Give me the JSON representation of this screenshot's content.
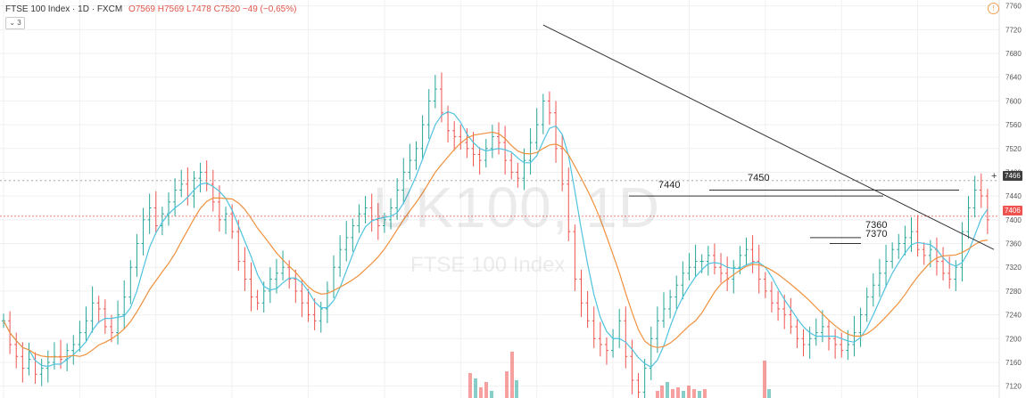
{
  "header": {
    "symbol_line": "FTSE 100 Index · 1D · FXCM",
    "ohlc": "O7569  H7569  L7478  C7520  −49 (−0,65%)",
    "collapse_label": "3"
  },
  "watermark": {
    "main": "UK100, 1D",
    "sub": "FTSE 100 Index"
  },
  "price_tags": {
    "crosshair": "7466",
    "last": "7406"
  },
  "icons": {
    "alert": "alert-icon",
    "crosshair": "crosshair-icon"
  },
  "colors": {
    "up": "#26a69a",
    "down": "#ef5350",
    "ma_fast": "#4fc3e0",
    "ma_slow": "#f0913e",
    "trendline": "#333333"
  },
  "levels": [
    {
      "label": "7440",
      "value": 7440
    },
    {
      "label": "7450",
      "value": 7450
    },
    {
      "label": "7360",
      "value": 7360
    },
    {
      "label": "7370",
      "value": 7370
    }
  ],
  "chart_data": {
    "type": "ohlc",
    "symbol": "UK100",
    "interval": "1D",
    "y_axis": {
      "ticks": [
        7120,
        7160,
        7200,
        7240,
        7280,
        7320,
        7360,
        7400,
        7440,
        7480,
        7520,
        7560,
        7600,
        7640,
        7680,
        7720,
        7760
      ],
      "ylim": [
        7100,
        7770
      ]
    },
    "grid": true,
    "trendline": {
      "from_bar": 85,
      "from_price": 7728,
      "to_bar": 156,
      "to_price": 7350
    },
    "horizontal_levels": [
      7440,
      7450,
      7360,
      7370
    ],
    "current_price_line": 7406,
    "crosshair_price": 7466,
    "closes": [
      7230,
      7190,
      7170,
      7150,
      7165,
      7140,
      7150,
      7160,
      7170,
      7165,
      7180,
      7190,
      7210,
      7230,
      7260,
      7250,
      7220,
      7210,
      7240,
      7270,
      7320,
      7360,
      7400,
      7420,
      7390,
      7410,
      7430,
      7450,
      7460,
      7440,
      7470,
      7480,
      7460,
      7430,
      7400,
      7410,
      7380,
      7330,
      7300,
      7270,
      7260,
      7280,
      7300,
      7310,
      7320,
      7300,
      7280,
      7260,
      7240,
      7230,
      7250,
      7280,
      7320,
      7350,
      7370,
      7390,
      7410,
      7420,
      7400,
      7390,
      7400,
      7420,
      7450,
      7480,
      7500,
      7520,
      7560,
      7600,
      7620,
      7580,
      7550,
      7540,
      7530,
      7520,
      7510,
      7500,
      7520,
      7540,
      7530,
      7500,
      7480,
      7470,
      7500,
      7530,
      7560,
      7600,
      7580,
      7520,
      7460,
      7380,
      7300,
      7260,
      7230,
      7200,
      7190,
      7180,
      7200,
      7230,
      7170,
      7130,
      7110,
      7150,
      7200,
      7230,
      7250,
      7270,
      7290,
      7310,
      7320,
      7330,
      7330,
      7340,
      7320,
      7310,
      7300,
      7320,
      7340,
      7350,
      7330,
      7300,
      7280,
      7260,
      7250,
      7240,
      7220,
      7200,
      7190,
      7200,
      7210,
      7220,
      7200,
      7190,
      7180,
      7190,
      7210,
      7240,
      7270,
      7290,
      7310,
      7330,
      7350,
      7360,
      7370,
      7380,
      7350,
      7340,
      7350,
      7330,
      7310,
      7300,
      7320,
      7380,
      7420,
      7450,
      7440,
      7400
    ],
    "volumes": [
      0,
      0,
      0,
      0,
      0,
      0,
      0,
      0,
      0,
      0,
      0,
      0,
      0,
      0,
      0,
      0,
      0,
      0,
      0,
      0,
      0,
      0,
      0,
      0,
      0,
      0,
      0,
      0,
      0,
      0,
      0,
      0,
      0,
      0,
      0,
      0,
      0,
      0,
      0,
      0,
      0,
      0,
      0,
      0,
      0,
      0,
      0,
      0,
      0,
      0,
      0,
      0,
      0,
      0,
      0,
      0,
      0,
      0,
      0,
      0,
      0,
      0,
      0,
      0,
      0,
      0,
      0,
      0,
      0,
      0,
      0,
      0,
      0,
      0,
      0,
      0,
      0,
      0,
      0,
      0,
      0,
      0,
      0,
      0,
      0,
      0,
      0,
      0,
      0,
      0,
      0,
      0,
      0,
      0,
      0,
      0,
      0,
      0,
      0,
      0,
      0,
      0,
      0,
      0,
      0,
      0,
      0,
      0,
      0,
      0,
      0,
      0,
      0,
      0,
      0,
      0,
      0,
      0,
      0,
      0,
      0,
      0,
      0,
      0,
      0,
      0,
      0,
      0,
      0,
      0,
      0,
      0,
      0,
      0,
      0,
      0,
      0,
      0,
      0,
      0,
      0,
      0,
      0,
      0,
      0,
      0,
      0,
      0,
      0,
      0,
      0,
      0,
      0,
      0,
      0
    ]
  }
}
